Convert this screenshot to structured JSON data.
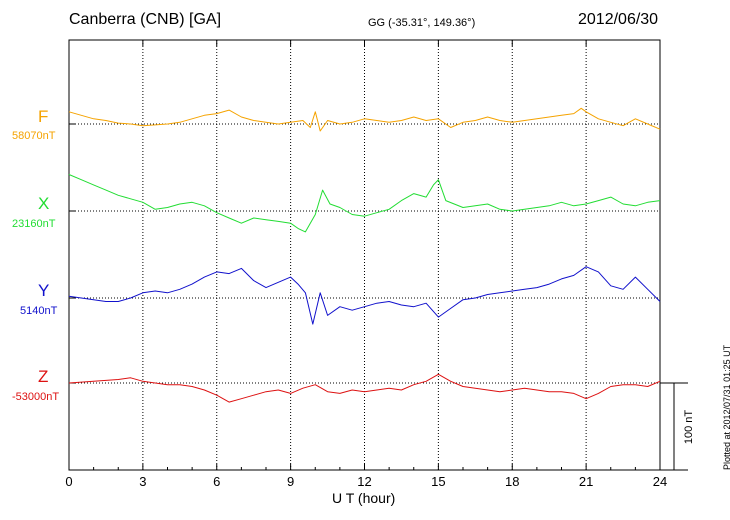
{
  "header": {
    "title": "Canberra (CNB)  [GA]",
    "coords": "GG (-35.31°, 149.36°)",
    "date": "2012/06/30"
  },
  "footer": {
    "plotted": "Plotted at 2012/07/31 01:25 UT"
  },
  "chart_data": {
    "type": "line",
    "xlabel": "U T (hour)",
    "xlim": [
      0,
      24
    ],
    "xticks": [
      0,
      3,
      6,
      9,
      12,
      15,
      18,
      21,
      24
    ],
    "x_tick_labels": [
      "0",
      "3",
      "6",
      "9",
      "12",
      "15",
      "18",
      "21",
      "24"
    ],
    "grid": "dotted vertical every 3 h, dotted baseline per channel",
    "scale_bar_label": "100 nT",
    "scale_bar_nT": 100,
    "series": [
      {
        "name": "F",
        "baseline_label": "58070nT",
        "baseline_nT": 58070,
        "color": "#f5a300",
        "x": [
          0,
          0.5,
          1,
          1.5,
          2,
          2.5,
          3,
          3.5,
          4,
          4.5,
          5,
          5.5,
          6,
          6.5,
          7,
          7.5,
          8,
          8.5,
          9,
          9.5,
          9.8,
          10,
          10.2,
          10.5,
          11,
          11.5,
          12,
          12.5,
          13,
          13.5,
          14,
          14.5,
          15,
          15.5,
          16,
          16.5,
          17,
          17.5,
          18,
          18.5,
          19,
          19.5,
          20,
          20.5,
          20.8,
          21,
          21.5,
          22,
          22.5,
          23,
          23.5,
          24
        ],
        "y": [
          14,
          10,
          6,
          4,
          1,
          0,
          -2,
          -1,
          0,
          2,
          6,
          10,
          12,
          16,
          8,
          4,
          2,
          0,
          2,
          4,
          -4,
          14,
          -8,
          4,
          0,
          2,
          6,
          4,
          2,
          4,
          8,
          4,
          6,
          -4,
          2,
          4,
          8,
          4,
          2,
          4,
          6,
          8,
          10,
          12,
          18,
          14,
          6,
          2,
          -2,
          6,
          0,
          -6
        ]
      },
      {
        "name": "X",
        "baseline_label": "23160nT",
        "baseline_nT": 23160,
        "color": "#22dd33",
        "x": [
          0,
          0.5,
          1,
          1.5,
          2,
          2.5,
          3,
          3.5,
          4,
          4.5,
          5,
          5.5,
          6,
          6.5,
          7,
          7.5,
          8,
          8.5,
          9,
          9.3,
          9.6,
          10,
          10.3,
          10.6,
          11,
          11.5,
          12,
          12.5,
          13,
          13.5,
          14,
          14.5,
          14.8,
          15,
          15.3,
          16,
          16.5,
          17,
          17.5,
          18,
          18.5,
          19,
          19.5,
          20,
          20.5,
          21,
          21.5,
          22,
          22.5,
          23,
          23.5,
          24
        ],
        "y": [
          42,
          36,
          30,
          24,
          18,
          14,
          10,
          2,
          4,
          8,
          10,
          6,
          -2,
          -8,
          -14,
          -8,
          -10,
          -12,
          -14,
          -20,
          -24,
          -4,
          24,
          8,
          4,
          -4,
          -6,
          -2,
          2,
          12,
          20,
          16,
          30,
          36,
          12,
          4,
          6,
          8,
          2,
          0,
          2,
          4,
          6,
          10,
          6,
          8,
          12,
          16,
          8,
          6,
          10,
          12
        ]
      },
      {
        "name": "Y",
        "baseline_label": "5140nT",
        "baseline_nT": 5140,
        "color": "#1111cc",
        "x": [
          0,
          0.5,
          1,
          1.5,
          2,
          2.5,
          3,
          3.5,
          4,
          4.5,
          5,
          5.5,
          6,
          6.5,
          7,
          7.5,
          8,
          8.5,
          9,
          9.3,
          9.6,
          9.9,
          10.2,
          10.5,
          11,
          11.5,
          12,
          12.5,
          13,
          13.5,
          14,
          14.5,
          15,
          15.5,
          16,
          16.5,
          17,
          17.5,
          18,
          18.5,
          19,
          19.5,
          20,
          20.5,
          21,
          21.5,
          22,
          22.5,
          23,
          23.5,
          24
        ],
        "y": [
          2,
          0,
          -2,
          -4,
          -4,
          0,
          6,
          8,
          6,
          10,
          16,
          24,
          30,
          28,
          34,
          20,
          12,
          18,
          24,
          16,
          6,
          -30,
          6,
          -20,
          -10,
          -14,
          -10,
          -6,
          -4,
          -8,
          -10,
          -6,
          -22,
          -12,
          -2,
          0,
          4,
          6,
          8,
          10,
          12,
          16,
          22,
          26,
          36,
          30,
          14,
          10,
          24,
          10,
          -4
        ]
      },
      {
        "name": "Z",
        "baseline_label": "-53000nT",
        "baseline_nT": -53000,
        "color": "#dd1111",
        "x": [
          0,
          0.5,
          1,
          1.5,
          2,
          2.5,
          3,
          3.5,
          4,
          4.5,
          5,
          5.5,
          6,
          6.5,
          7,
          7.5,
          8,
          8.5,
          9,
          9.5,
          10,
          10.5,
          11,
          11.5,
          12,
          12.5,
          13,
          13.5,
          14,
          14.5,
          15,
          15.5,
          16,
          16.5,
          17,
          17.5,
          18,
          18.5,
          19,
          19.5,
          20,
          20.5,
          21,
          21.5,
          22,
          22.5,
          23,
          23.5,
          24
        ],
        "y": [
          0,
          1,
          2,
          3,
          4,
          6,
          2,
          0,
          -2,
          -2,
          -4,
          -8,
          -14,
          -22,
          -18,
          -14,
          -10,
          -8,
          -12,
          -6,
          -2,
          -10,
          -12,
          -8,
          -10,
          -8,
          -6,
          -8,
          -2,
          2,
          10,
          2,
          -4,
          -6,
          -8,
          -10,
          -8,
          -6,
          -8,
          -10,
          -10,
          -12,
          -18,
          -12,
          -4,
          -2,
          -2,
          -4,
          2
        ]
      }
    ]
  }
}
